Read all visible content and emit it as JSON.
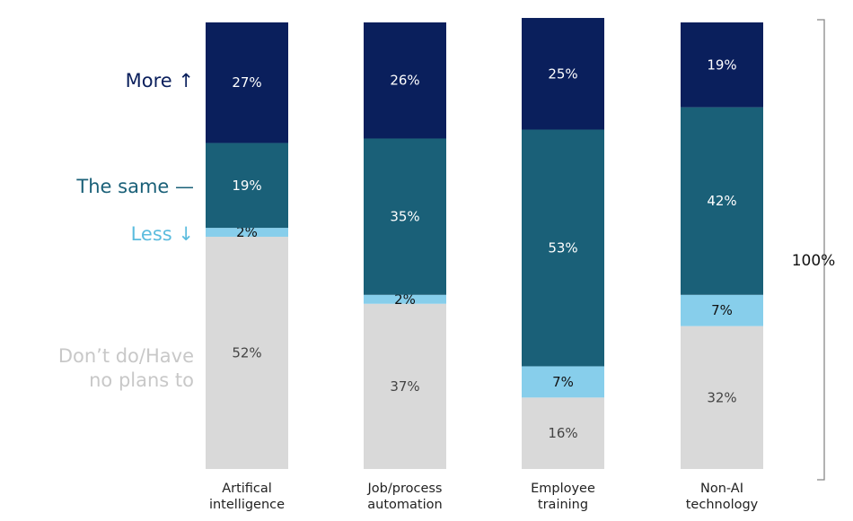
{
  "chart_data": {
    "type": "bar",
    "stacked": true,
    "orientation": "vertical",
    "categories": [
      "Artifical\nintelligence",
      "Job/process\nautomation",
      "Employee\ntraining",
      "Non-AI\ntechnology"
    ],
    "series": [
      {
        "name": "Don’t do/Have\nno plans to",
        "color": "#d9d9d9",
        "label_color": "#444444",
        "values": [
          52,
          37,
          16,
          32
        ]
      },
      {
        "name": "Less ↓",
        "color": "#87ceeb",
        "label_color": "#111111",
        "values": [
          2,
          2,
          7,
          7
        ]
      },
      {
        "name": "The same —",
        "color": "#1a6078",
        "label_color": "#ffffff",
        "values": [
          19,
          35,
          53,
          42
        ]
      },
      {
        "name": "More ↑",
        "color": "#0a1f5c",
        "label_color": "#ffffff",
        "values": [
          27,
          26,
          25,
          19
        ]
      }
    ],
    "data_labels": [
      [
        "52%",
        "37%",
        "16%",
        "32%"
      ],
      [
        "2%",
        "2%",
        "7%",
        "7%"
      ],
      [
        "19%",
        "35%",
        "53%",
        "42%"
      ],
      [
        "27%",
        "26%",
        "25%",
        "19%"
      ]
    ],
    "legend_colors": [
      "#c8c8c8",
      "#5bbcde",
      "#1a6078",
      "#0a1f5c"
    ],
    "ylim": [
      0,
      100
    ],
    "total_label": "100%",
    "title": "",
    "xlabel": "",
    "ylabel": "",
    "legend": "left",
    "grid": false
  }
}
